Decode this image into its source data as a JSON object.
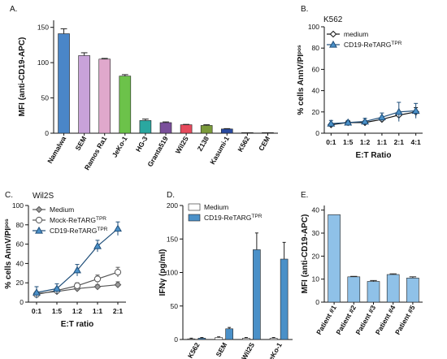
{
  "figure": {
    "background": "#ffffff"
  },
  "chart_data": [
    {
      "panel": "A.",
      "type": "bar",
      "title": "",
      "xlabel": "",
      "ylabel": "MFI (anti-CD19-APC)",
      "ylim": [
        0,
        160
      ],
      "yticks": [
        0,
        50,
        100,
        150
      ],
      "categories": [
        "Namalwa",
        "SEM",
        "Ramos Ra1",
        "JeKo-1",
        "HG-3",
        "Granta519",
        "Wil2S",
        "Z138",
        "Kasumi-1",
        "K562",
        "CEM"
      ],
      "values": [
        141,
        110,
        105,
        81,
        18,
        15,
        12,
        11,
        6,
        0.5,
        0.3
      ],
      "errors": [
        7,
        4,
        1,
        2,
        2,
        1,
        0.5,
        1,
        0.5,
        0,
        0
      ],
      "colors": [
        "#4a86c8",
        "#c8a2d9",
        "#e0a8cc",
        "#6cc24a",
        "#2aa7a0",
        "#7a4f9b",
        "#e64a5c",
        "#7a9a3a",
        "#2a4aa0",
        "#444444",
        "#444444"
      ],
      "grid": false
    },
    {
      "panel": "B.",
      "type": "line",
      "title": "K562",
      "xlabel": "E:T Ratio",
      "ylabel": "% cells AnnV/PI",
      "ylabel_sup": "pos",
      "ylim": [
        0,
        100
      ],
      "yticks": [
        0,
        20,
        40,
        60,
        80,
        100
      ],
      "categories": [
        "0:1",
        "1:5",
        "1:2",
        "1:1",
        "2:1",
        "4:1"
      ],
      "series": [
        {
          "name": "medium",
          "name_sup": "",
          "marker": "diamond",
          "color": "#111111",
          "fill": "#ffffff",
          "values": [
            8,
            10,
            10,
            13,
            17,
            20
          ],
          "errors": [
            1.5,
            1.5,
            2,
            2,
            3,
            4
          ]
        },
        {
          "name": "CD19-ReTARG",
          "name_sup": "TPR",
          "marker": "triangle",
          "color": "#1f4e79",
          "fill": "#4a90c8",
          "values": [
            9,
            10,
            11,
            15,
            20,
            21
          ],
          "errors": [
            3,
            2,
            3,
            4,
            9,
            7
          ]
        }
      ],
      "legend": "top-left",
      "grid": false
    },
    {
      "panel": "C.",
      "type": "line",
      "title": "Wil2S",
      "xlabel": "E:T ratio",
      "ylabel": "% cells AnnV/PI",
      "ylabel_sup": "pos",
      "ylim": [
        0,
        100
      ],
      "yticks": [
        0,
        20,
        40,
        60,
        80,
        100
      ],
      "categories": [
        "0:1",
        "1:5",
        "1:2",
        "1:1",
        "2:1"
      ],
      "series": [
        {
          "name": "Medium",
          "name_sup": "",
          "marker": "diamond",
          "color": "#555555",
          "fill": "#9a9a9a",
          "values": [
            9,
            11,
            14,
            16,
            18
          ],
          "errors": [
            2,
            2,
            2,
            2,
            3
          ]
        },
        {
          "name": "Mock-ReTARG",
          "name_sup": "TPR",
          "marker": "circle",
          "color": "#555555",
          "fill": "#ffffff",
          "values": [
            8,
            12,
            17,
            24,
            31
          ],
          "errors": [
            3,
            3,
            3,
            4,
            5
          ]
        },
        {
          "name": "CD19-ReTARG",
          "name_sup": "TPR",
          "marker": "triangle",
          "color": "#1f4e79",
          "fill": "#4a90c8",
          "values": [
            10,
            14,
            33,
            58,
            76
          ],
          "errors": [
            6,
            5,
            6,
            6,
            7
          ]
        }
      ],
      "legend": "top-left",
      "grid": false
    },
    {
      "panel": "D.",
      "type": "bar",
      "title": "",
      "xlabel": "",
      "ylabel": "IFNγ (pg/ml)",
      "ylim": [
        0,
        200
      ],
      "yticks": [
        0,
        50,
        100,
        150,
        200
      ],
      "categories": [
        "K562",
        "SEM",
        "Wil2S",
        "JeKo-1"
      ],
      "series": [
        {
          "name": "Medium",
          "name_sup": "",
          "color": "#ffffff",
          "values": [
            1,
            3,
            2,
            2
          ],
          "errors": [
            1,
            1,
            1,
            1
          ]
        },
        {
          "name": "CD19-ReTARG",
          "name_sup": "TPR",
          "color": "#4a90c8",
          "values": [
            2,
            16,
            134,
            120
          ],
          "errors": [
            1,
            2,
            25,
            25
          ]
        }
      ],
      "legend": "top-left",
      "grid": false
    },
    {
      "panel": "E.",
      "type": "bar",
      "title": "",
      "xlabel": "",
      "ylabel": "MFI (anti-CD19-APC)",
      "ylim": [
        0,
        42
      ],
      "yticks": [
        0,
        10,
        20,
        30,
        40
      ],
      "categories": [
        "Patient #1",
        "Patient #2",
        "Patient #3",
        "Patient #4",
        "Patient #5"
      ],
      "values": [
        38,
        11,
        9,
        12,
        10.5
      ],
      "errors": [
        0,
        0.2,
        0.4,
        0.3,
        0.5
      ],
      "colors": [
        "#8fc1e8",
        "#8fc1e8",
        "#8fc1e8",
        "#8fc1e8",
        "#8fc1e8"
      ],
      "grid": false
    }
  ]
}
